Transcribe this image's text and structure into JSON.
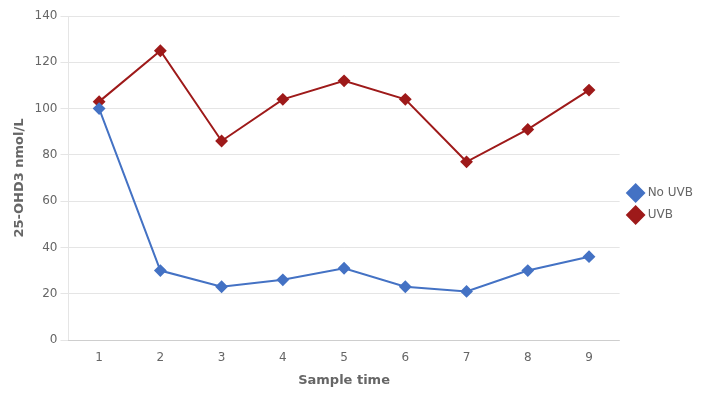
{
  "chart_data": {
    "type": "line",
    "x": [
      1,
      2,
      3,
      4,
      5,
      6,
      7,
      8,
      9
    ],
    "series": [
      {
        "name": "No UVB",
        "color": "#4472C4",
        "values": [
          100,
          30,
          23,
          26,
          31,
          23,
          21,
          30,
          36
        ]
      },
      {
        "name": "UVB",
        "color": "#9E1A1A",
        "values": [
          103,
          125,
          86,
          104,
          112,
          104,
          77,
          91,
          108
        ]
      }
    ],
    "xlabel": "Sample time",
    "ylabel": "25-OHD3 nmol/L",
    "xlim": [
      0.5,
      9.5
    ],
    "xticks": [
      1,
      2,
      3,
      4,
      5,
      6,
      7,
      8,
      9
    ],
    "ylim": [
      0,
      140
    ],
    "yticks": [
      0,
      20,
      40,
      60,
      80,
      100,
      120,
      140
    ],
    "grid": "y",
    "legend": "right",
    "marker": "diamond"
  }
}
